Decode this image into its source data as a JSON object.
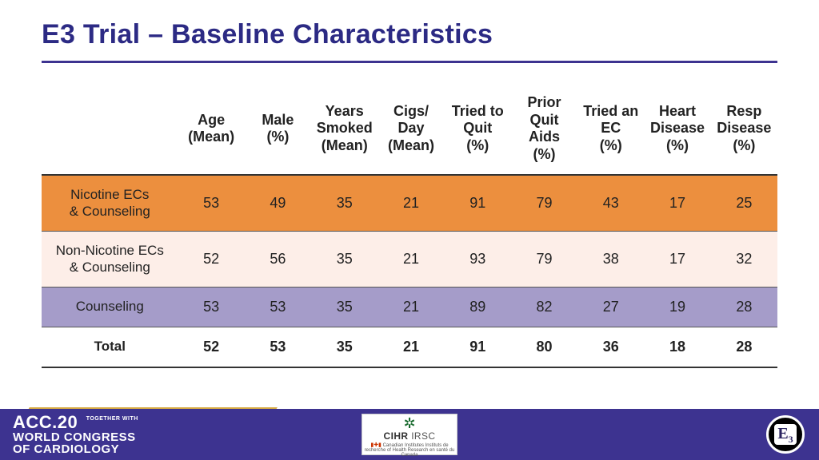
{
  "colors": {
    "title": "#2c2a84",
    "rule": "#3d3390",
    "row_orange": "#ec8f3e",
    "row_cream": "#fdeee8",
    "row_lavender": "#a59cc9",
    "row_total": "#ffffff",
    "footer_bg": "#3d3390",
    "footer_accent": "#d6a943"
  },
  "title": "E3 Trial – Baseline Characteristics",
  "table": {
    "columns": [
      "Age (Mean)",
      "Male (%)",
      "Years Smoked (Mean)",
      "Cigs/ Day (Mean)",
      "Tried to Quit (%)",
      "Prior Quit Aids (%)",
      "Tried an EC (%)",
      "Heart Disease (%)",
      "Resp Disease (%)"
    ],
    "rows": [
      {
        "label": "Nicotine ECs & Counseling",
        "label_html": "Nicotine ECs<br>& Counseling",
        "bg_key": "row_orange",
        "values": [
          53,
          49,
          35,
          21,
          91,
          79,
          43,
          17,
          25
        ]
      },
      {
        "label": "Non-Nicotine ECs & Counseling",
        "label_html": "Non-Nicotine ECs<br>& Counseling",
        "bg_key": "row_cream",
        "values": [
          52,
          56,
          35,
          21,
          93,
          79,
          38,
          17,
          32
        ]
      },
      {
        "label": "Counseling",
        "label_html": "Counseling",
        "bg_key": "row_lavender",
        "values": [
          53,
          53,
          35,
          21,
          89,
          82,
          27,
          19,
          28
        ]
      }
    ],
    "total": {
      "label": "Total",
      "values": [
        52,
        53,
        35,
        21,
        91,
        80,
        36,
        18,
        28
      ]
    },
    "header_fontsize": 18,
    "cell_fontsize": 18
  },
  "footer": {
    "acc_line1a": "ACC.20",
    "acc_line1b": "TOGETHER WITH",
    "acc_line2": "WORLD CONGRESS",
    "acc_line3": "OF CARDIOLOGY",
    "cihr": "CIHR",
    "irsc": "IRSC",
    "cihr_sub": "Canadian Institutes  Instituts de recherche\nof Health Research  en santé du Canada",
    "e3": "E",
    "e3_sub": "3"
  }
}
